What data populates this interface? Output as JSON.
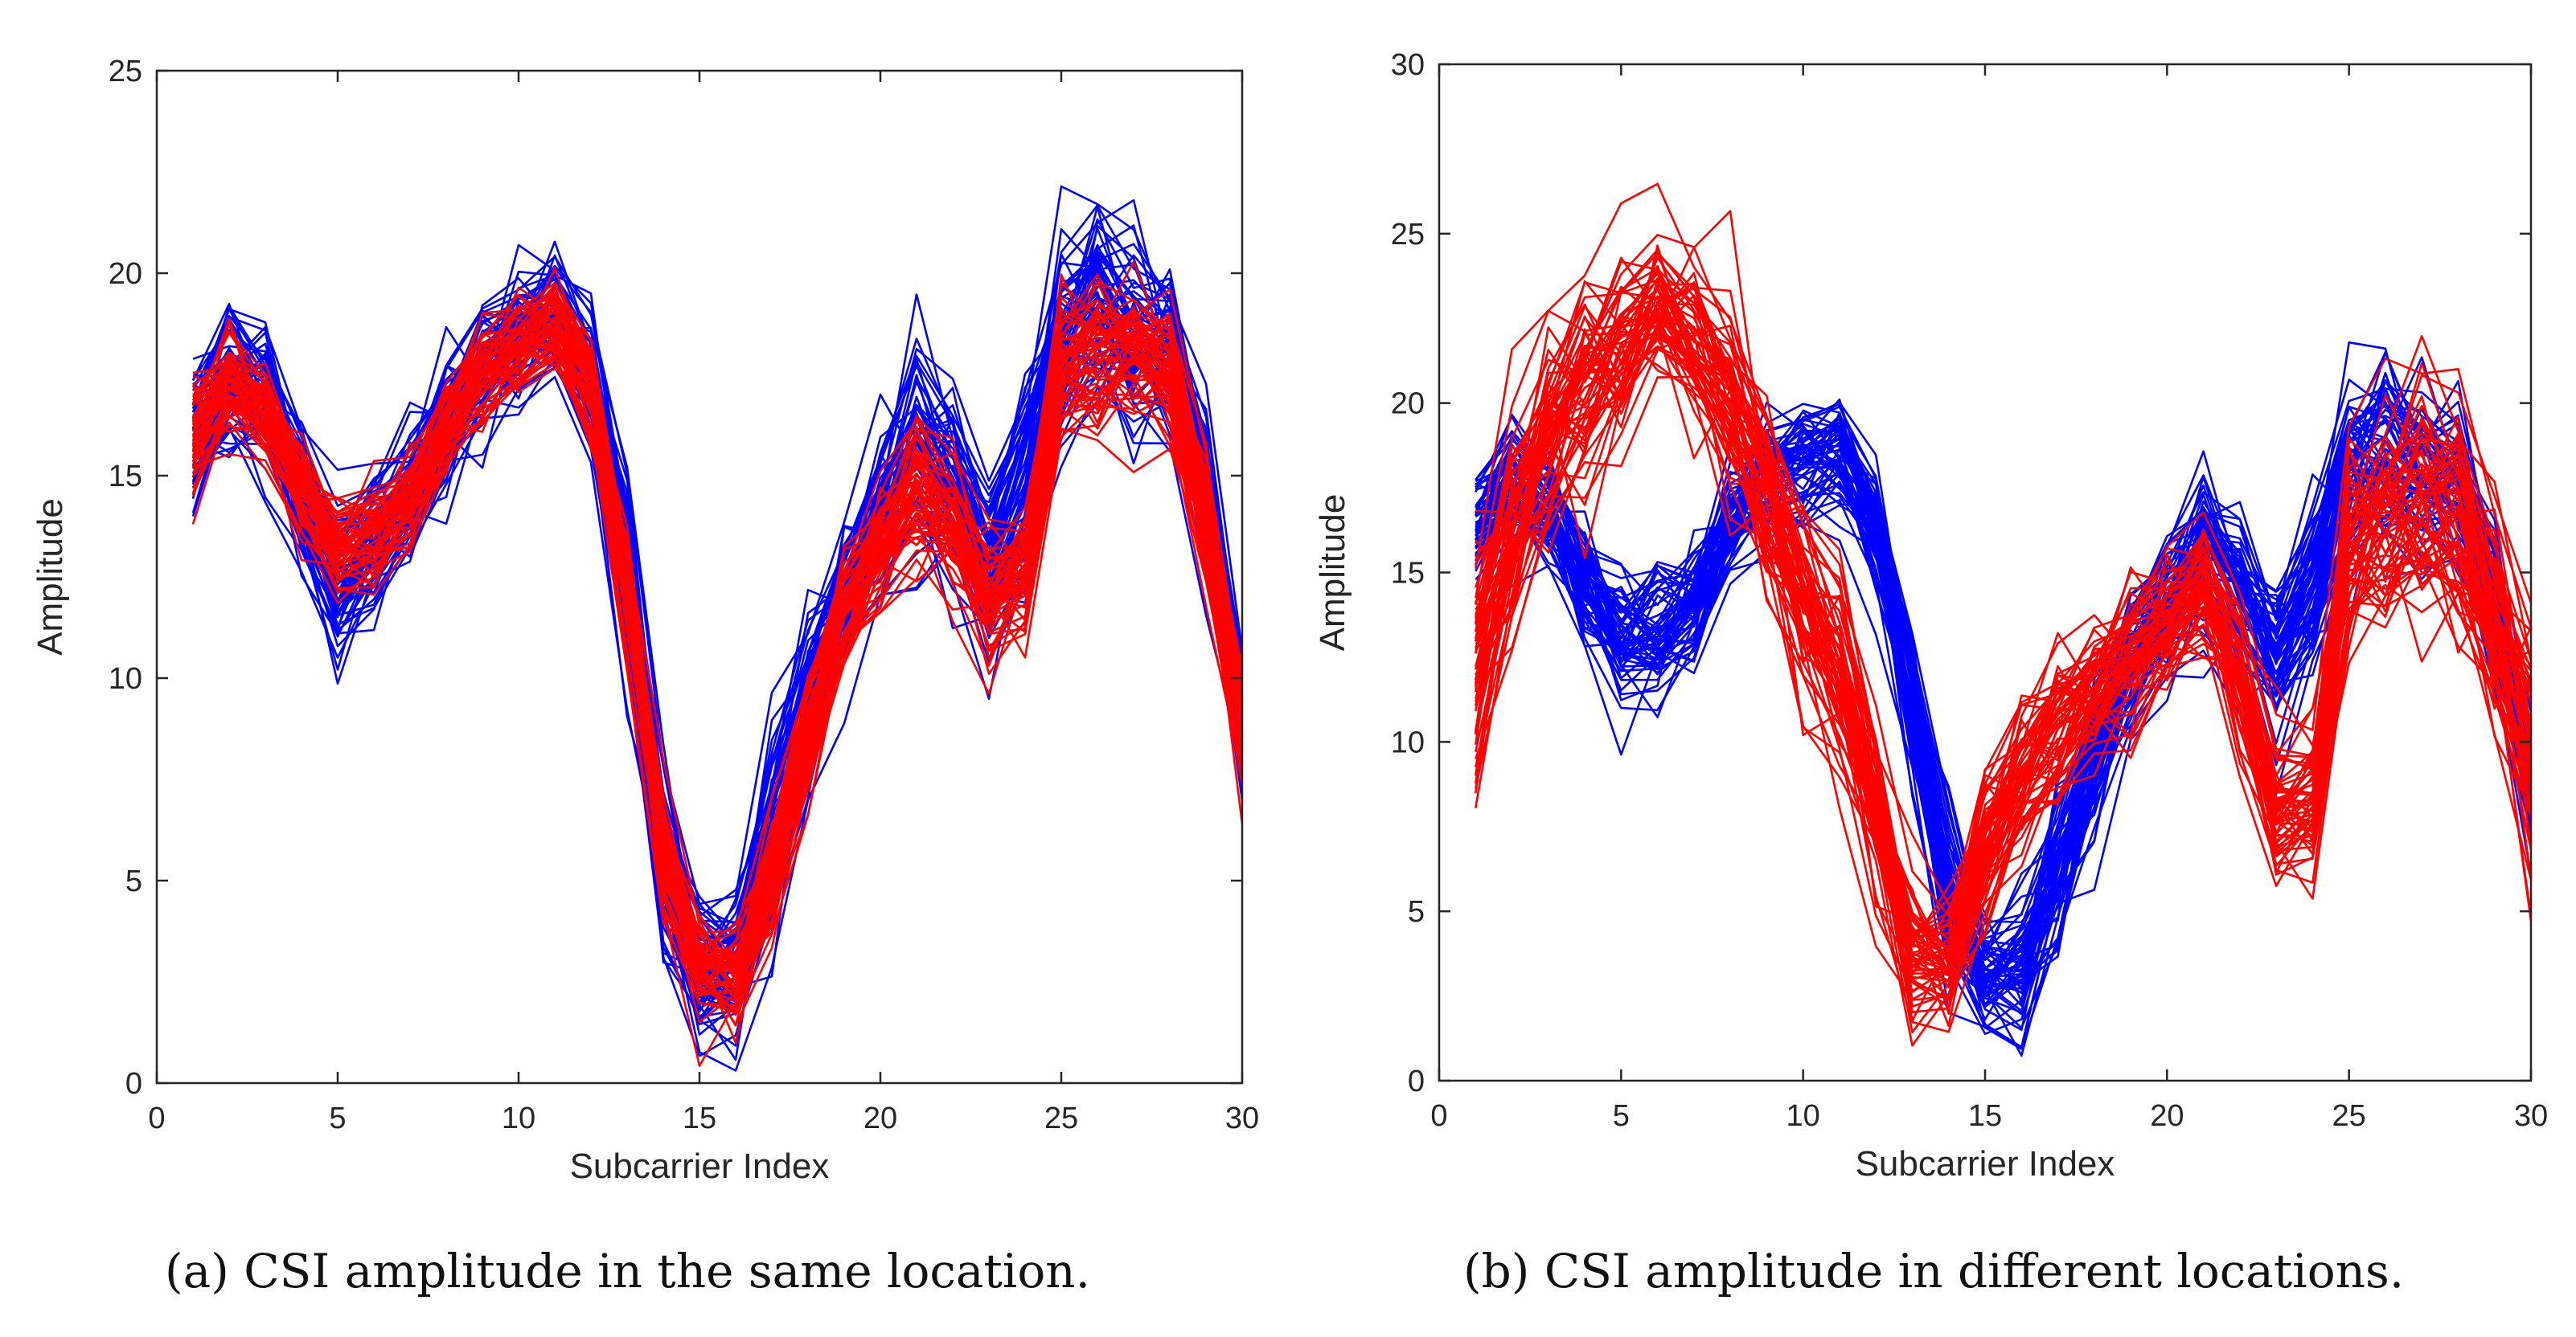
{
  "chart_data": [
    {
      "id": "a",
      "type": "line",
      "caption": "(a)   CSI amplitude in the same location.",
      "xlabel": "Subcarrier Index",
      "ylabel": "Amplitude",
      "xlim": [
        0,
        30
      ],
      "ylim": [
        0,
        25
      ],
      "xticks": [
        0,
        5,
        10,
        15,
        20,
        25,
        30
      ],
      "yticks": [
        0,
        5,
        10,
        15,
        20,
        25
      ],
      "grid": false,
      "x": [
        1,
        2,
        3,
        4,
        5,
        6,
        7,
        8,
        9,
        10,
        11,
        12,
        13,
        14,
        15,
        16,
        17,
        18,
        19,
        20,
        21,
        22,
        23,
        24,
        25,
        26,
        27,
        28,
        29,
        30
      ],
      "series": [
        {
          "color": "#0000ff",
          "lines": 60,
          "mean": [
            16.2,
            17.5,
            16.8,
            14.5,
            12.3,
            13.4,
            14.6,
            16.3,
            17.8,
            18.6,
            18.9,
            17.4,
            12.6,
            5.8,
            2.8,
            2.9,
            5.9,
            9.4,
            12.0,
            13.9,
            15.8,
            14.7,
            12.6,
            14.6,
            18.2,
            19.3,
            18.6,
            18.1,
            14.5,
            9.0
          ],
          "spread": [
            1.2,
            1.0,
            1.0,
            1.2,
            1.3,
            1.2,
            1.1,
            1.0,
            1.0,
            1.0,
            1.0,
            1.0,
            1.4,
            1.6,
            1.0,
            1.2,
            1.6,
            1.5,
            1.3,
            1.2,
            1.6,
            1.3,
            1.4,
            1.5,
            1.8,
            1.7,
            1.6,
            1.4,
            1.2,
            1.0
          ]
        },
        {
          "color": "#ff0000",
          "lines": 60,
          "mean": [
            16.0,
            17.4,
            16.6,
            14.7,
            13.3,
            13.6,
            14.4,
            16.2,
            17.6,
            18.2,
            18.8,
            17.2,
            12.3,
            5.7,
            3.0,
            2.7,
            5.2,
            8.7,
            11.6,
            13.3,
            14.6,
            13.8,
            12.0,
            12.8,
            17.6,
            18.0,
            18.0,
            17.7,
            14.0,
            8.6
          ],
          "spread": [
            0.9,
            0.8,
            0.8,
            0.8,
            0.8,
            0.8,
            0.8,
            0.8,
            0.8,
            0.8,
            0.8,
            0.8,
            0.9,
            1.0,
            0.8,
            0.8,
            1.0,
            1.0,
            1.0,
            1.0,
            1.1,
            1.1,
            1.1,
            1.1,
            1.2,
            1.2,
            1.2,
            1.2,
            1.0,
            0.9
          ]
        }
      ]
    },
    {
      "id": "b",
      "type": "line",
      "caption": "(b)   CSI amplitude in different locations.",
      "xlabel": "Subcarrier Index",
      "ylabel": "Amplitude",
      "xlim": [
        0,
        30
      ],
      "ylim": [
        0,
        30
      ],
      "xticks": [
        0,
        5,
        10,
        15,
        20,
        25,
        30
      ],
      "yticks": [
        0,
        5,
        10,
        15,
        20,
        25,
        30
      ],
      "grid": false,
      "x": [
        1,
        2,
        3,
        4,
        5,
        6,
        7,
        8,
        9,
        10,
        11,
        12,
        13,
        14,
        15,
        16,
        17,
        18,
        19,
        20,
        21,
        22,
        23,
        24,
        25,
        26,
        27,
        28,
        29,
        30
      ],
      "series": [
        {
          "color": "#0000ff",
          "lines": 60,
          "mean": [
            16.2,
            17.5,
            16.8,
            14.5,
            13.0,
            13.2,
            14.0,
            16.3,
            17.8,
            18.2,
            18.5,
            16.4,
            11.0,
            5.5,
            3.0,
            3.2,
            6.2,
            9.6,
            12.4,
            14.0,
            15.6,
            14.4,
            12.4,
            14.4,
            17.8,
            18.6,
            18.0,
            17.6,
            14.0,
            9.0
          ],
          "spread": [
            1.2,
            1.0,
            1.0,
            1.2,
            1.3,
            1.2,
            1.1,
            1.0,
            1.0,
            1.0,
            1.0,
            1.2,
            1.5,
            1.6,
            1.0,
            1.2,
            1.6,
            1.5,
            1.3,
            1.2,
            1.6,
            1.3,
            1.4,
            1.5,
            1.8,
            1.7,
            1.6,
            1.4,
            1.2,
            1.0
          ]
        },
        {
          "color": "#ff0000",
          "lines": 60,
          "mean": [
            12.5,
            16.5,
            19.0,
            20.5,
            21.5,
            23.0,
            22.0,
            20.0,
            17.5,
            14.5,
            12.0,
            8.0,
            4.0,
            3.5,
            7.0,
            9.0,
            10.5,
            11.5,
            12.5,
            13.5,
            14.5,
            12.0,
            8.0,
            8.5,
            15.5,
            17.0,
            17.0,
            16.5,
            14.0,
            10.0
          ],
          "spread": [
            2.5,
            2.0,
            2.0,
            1.8,
            1.8,
            1.5,
            1.5,
            1.8,
            1.8,
            2.0,
            2.0,
            1.8,
            1.5,
            1.2,
            1.5,
            1.5,
            1.5,
            1.4,
            1.4,
            1.2,
            1.2,
            1.5,
            1.5,
            1.5,
            2.0,
            2.0,
            2.2,
            2.2,
            2.2,
            2.5
          ]
        }
      ]
    }
  ]
}
